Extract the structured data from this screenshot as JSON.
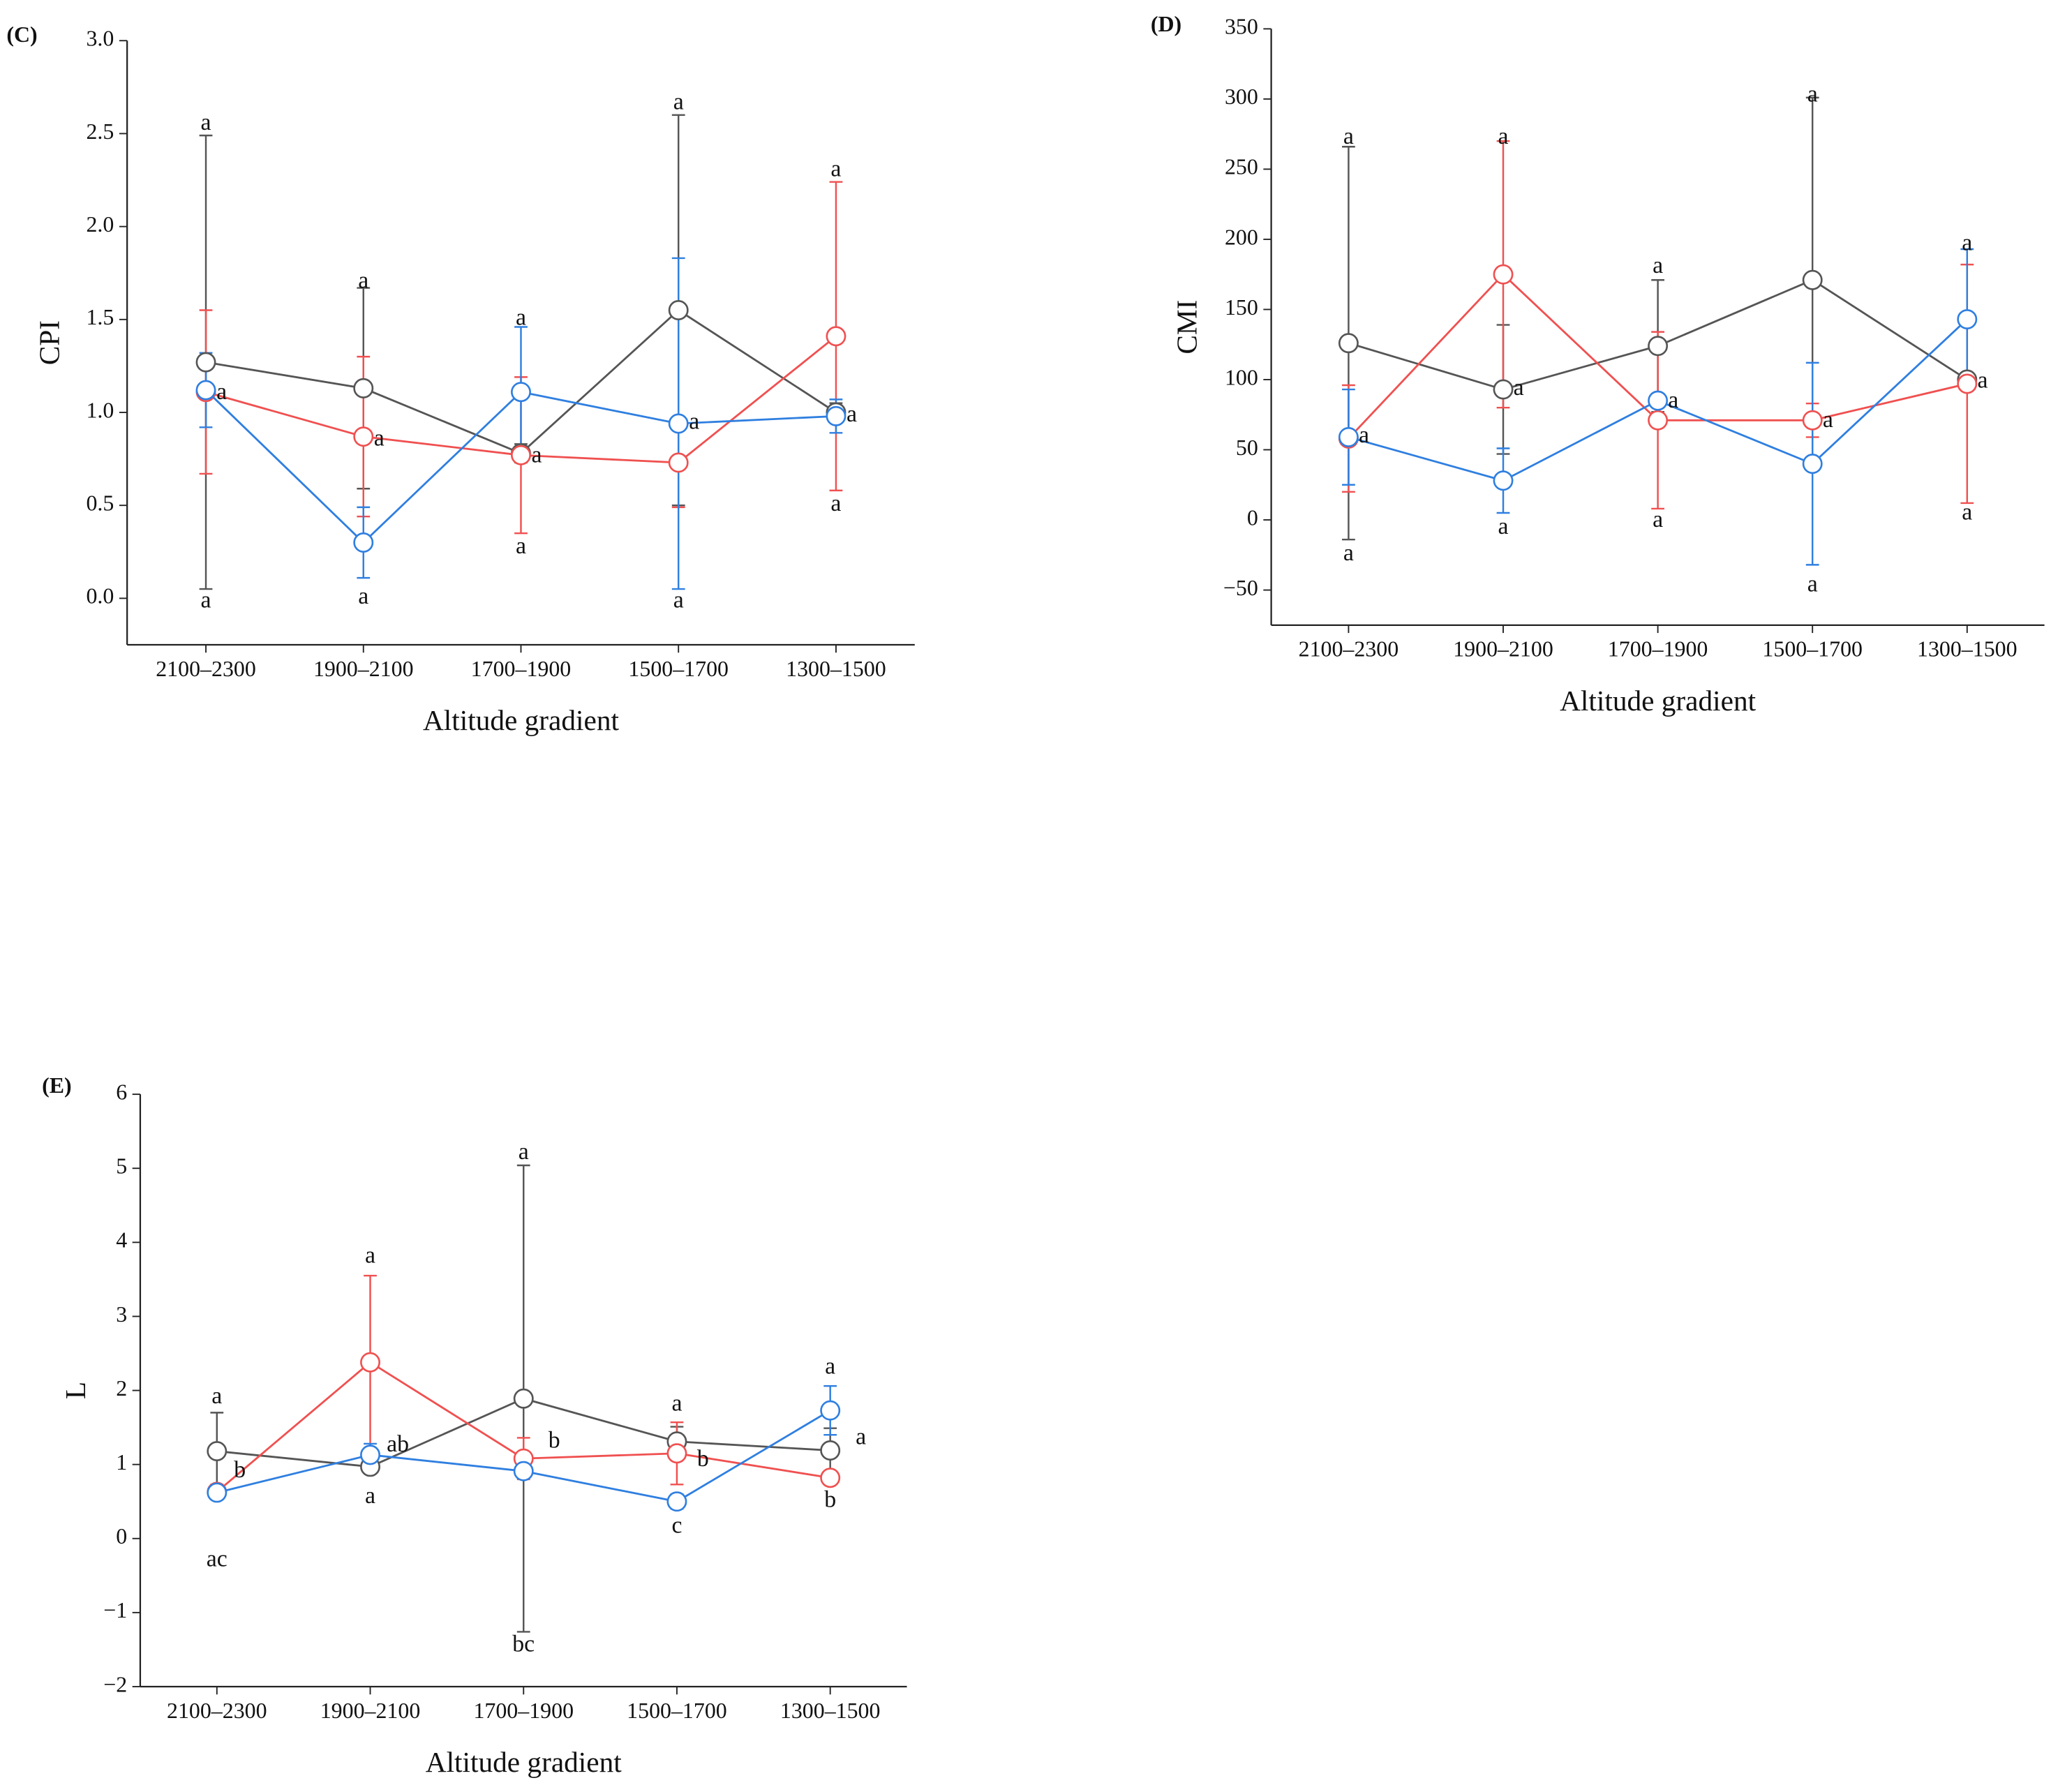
{
  "chart_data": [
    {
      "type": "line",
      "label": "(C)",
      "ylabel": "CPI",
      "xlabel": "Altitude gradient",
      "categories": [
        "2100–2300",
        "1900–2100",
        "1700–1900",
        "1500–1700",
        "1300–1500"
      ],
      "series": [
        {
          "color": "#555555",
          "values": [
            1.27,
            1.13,
            0.78,
            1.55,
            1.0
          ],
          "errors": [
            1.22,
            0.54,
            0.05,
            1.05,
            0.05
          ]
        },
        {
          "color": "#f05050",
          "values": [
            1.11,
            0.87,
            0.77,
            0.73,
            1.41
          ],
          "errors": [
            0.44,
            0.43,
            0.42,
            0.24,
            0.83
          ]
        },
        {
          "color": "#2f7fe0",
          "values": [
            1.12,
            0.3,
            1.11,
            0.94,
            0.98
          ],
          "errors": [
            0.2,
            0.19,
            0.35,
            0.89,
            0.09
          ]
        }
      ],
      "ylim": [
        -0.25,
        3.0
      ],
      "yticks": [
        {
          "value": 0,
          "label": "0.0"
        },
        {
          "value": 0.5,
          "label": "0.5"
        },
        {
          "value": 1,
          "label": "1.0"
        },
        {
          "value": 1.5,
          "label": "1.5"
        },
        {
          "value": 2,
          "label": "2.0"
        },
        {
          "value": 2.5,
          "label": "2.5"
        },
        {
          "value": 3,
          "label": "3.0"
        }
      ],
      "annotations": [
        {
          "text": "a",
          "x": 0,
          "y": 2.55
        },
        {
          "text": "a",
          "x": 0.1,
          "y": 1.1
        },
        {
          "text": "a",
          "x": 0,
          "y": -0.02
        },
        {
          "text": "a",
          "x": 1,
          "y": 1.7
        },
        {
          "text": "a",
          "x": 1.1,
          "y": 0.85
        },
        {
          "text": "a",
          "x": 1,
          "y": 0.0
        },
        {
          "text": "a",
          "x": 2,
          "y": 1.5
        },
        {
          "text": "a",
          "x": 2.1,
          "y": 0.76
        },
        {
          "text": "a",
          "x": 2,
          "y": 0.27
        },
        {
          "text": "a",
          "x": 3,
          "y": 2.66
        },
        {
          "text": "a",
          "x": 3.1,
          "y": 0.94
        },
        {
          "text": "a",
          "x": 3,
          "y": -0.02
        },
        {
          "text": "a",
          "x": 4,
          "y": 2.3
        },
        {
          "text": "a",
          "x": 4.1,
          "y": 0.98
        },
        {
          "text": "a",
          "x": 4,
          "y": 0.5
        }
      ]
    },
    {
      "type": "line",
      "label": "(D)",
      "ylabel": "CMI",
      "xlabel": "Altitude gradient",
      "categories": [
        "2100–2300",
        "1900–2100",
        "1700–1900",
        "1500–1700",
        "1300–1500"
      ],
      "series": [
        {
          "color": "#555555",
          "values": [
            126,
            93,
            124,
            171,
            100
          ],
          "errors": [
            140,
            46,
            47,
            130,
            3
          ]
        },
        {
          "color": "#f05050",
          "values": [
            58,
            175,
            71,
            71,
            97
          ],
          "errors": [
            38,
            95,
            63,
            12,
            85
          ]
        },
        {
          "color": "#2f7fe0",
          "values": [
            59,
            28,
            85,
            40,
            143
          ],
          "errors": [
            34,
            23,
            5,
            72,
            50
          ]
        }
      ],
      "ylim": [
        -75,
        350
      ],
      "yticks": [
        {
          "value": -50,
          "label": "−50"
        },
        0,
        50,
        100,
        150,
        200,
        250,
        300,
        350
      ],
      "annotations": [
        {
          "text": "a",
          "x": 0,
          "y": 272
        },
        {
          "text": "a",
          "x": 0.1,
          "y": 59
        },
        {
          "text": "a",
          "x": 0,
          "y": -25
        },
        {
          "text": "a",
          "x": 1,
          "y": 272
        },
        {
          "text": "a",
          "x": 1.1,
          "y": 93
        },
        {
          "text": "a",
          "x": 1,
          "y": -6
        },
        {
          "text": "a",
          "x": 2,
          "y": 180
        },
        {
          "text": "a",
          "x": 2.1,
          "y": 84
        },
        {
          "text": "a",
          "x": 2,
          "y": -1
        },
        {
          "text": "a",
          "x": 3,
          "y": 302
        },
        {
          "text": "a",
          "x": 3.1,
          "y": 70
        },
        {
          "text": "a",
          "x": 3,
          "y": -47
        },
        {
          "text": "a",
          "x": 4,
          "y": 196
        },
        {
          "text": "a",
          "x": 4.1,
          "y": 98
        },
        {
          "text": "a",
          "x": 4,
          "y": 4
        }
      ]
    },
    {
      "type": "line",
      "label": "(E)",
      "ylabel": "L",
      "xlabel": "Altitude gradient",
      "categories": [
        "2100–2300",
        "1900–2100",
        "1700–1900",
        "1500–1700",
        "1300–1500"
      ],
      "series": [
        {
          "color": "#555555",
          "values": [
            1.18,
            0.97,
            1.89,
            1.31,
            1.19
          ],
          "errors": [
            0.52,
            0.07,
            3.15,
            0.2,
            0.3
          ]
        },
        {
          "color": "#f05050",
          "values": [
            0.63,
            2.38,
            1.08,
            1.15,
            0.82
          ],
          "errors": [
            0.1,
            1.17,
            0.28,
            0.42,
            0.08
          ]
        },
        {
          "color": "#2f7fe0",
          "values": [
            0.62,
            1.13,
            0.91,
            0.5,
            1.73
          ],
          "errors": [
            0.08,
            0.15,
            0.1,
            0.1,
            0.33
          ]
        }
      ],
      "ylim": [
        -2,
        6
      ],
      "yticks": [
        {
          "value": -2,
          "label": "−2"
        },
        {
          "value": -1,
          "label": "−1"
        },
        0,
        1,
        2,
        3,
        4,
        5,
        6
      ],
      "annotations": [
        {
          "text": "a",
          "x": 0,
          "y": 1.9
        },
        {
          "text": "b",
          "x": 0.15,
          "y": 0.9
        },
        {
          "text": "ac",
          "x": 0,
          "y": -0.3
        },
        {
          "text": "a",
          "x": 1,
          "y": 3.8
        },
        {
          "text": "ab",
          "x": 1.18,
          "y": 1.25
        },
        {
          "text": "a",
          "x": 1,
          "y": 0.55
        },
        {
          "text": "a",
          "x": 2,
          "y": 5.2
        },
        {
          "text": "b",
          "x": 2.2,
          "y": 1.3
        },
        {
          "text": "bc",
          "x": 2,
          "y": -1.45
        },
        {
          "text": "a",
          "x": 3,
          "y": 1.8
        },
        {
          "text": "b",
          "x": 3.17,
          "y": 1.05
        },
        {
          "text": "c",
          "x": 3,
          "y": 0.15
        },
        {
          "text": "a",
          "x": 4,
          "y": 2.3
        },
        {
          "text": "a",
          "x": 4.2,
          "y": 1.35
        },
        {
          "text": "b",
          "x": 4,
          "y": 0.5
        }
      ]
    }
  ]
}
